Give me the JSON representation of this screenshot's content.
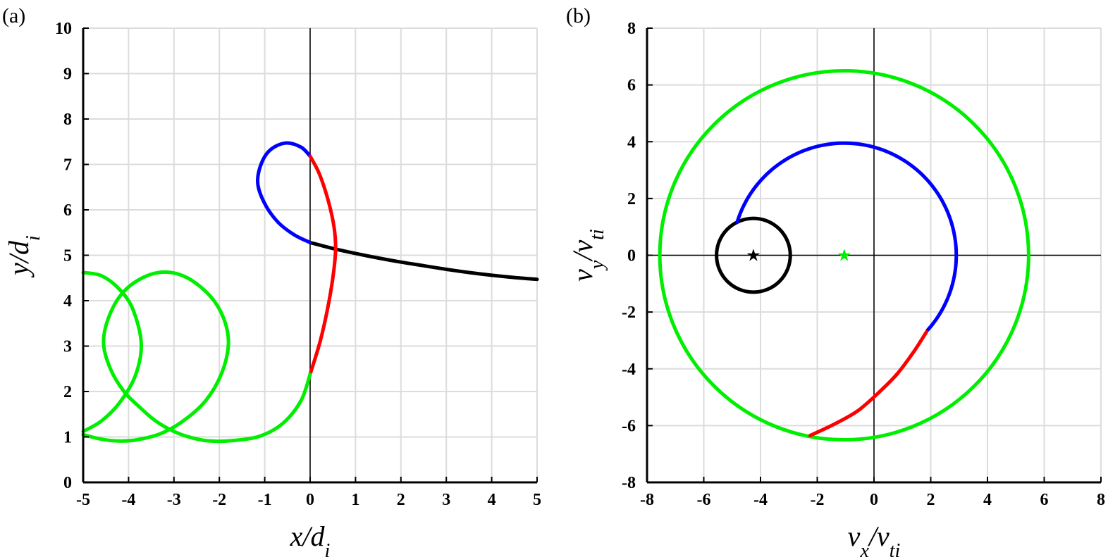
{
  "chart_data": [
    {
      "type": "line",
      "panel_label": "(a)",
      "xlabel": "x/d_i",
      "ylabel": "y/d_i",
      "xlim": [
        -5,
        5
      ],
      "ylim": [
        0,
        10
      ],
      "xticks": [
        "-5",
        "-4",
        "-3",
        "-2",
        "-1",
        "0",
        "1",
        "2",
        "3",
        "4",
        "5"
      ],
      "yticks": [
        "0",
        "1",
        "2",
        "3",
        "4",
        "5",
        "6",
        "7",
        "8",
        "9",
        "10"
      ],
      "grid": true,
      "zero_lines": true,
      "series": [
        {
          "color": "#000000",
          "points": [
            [
              0,
              5.28
            ],
            [
              0.5,
              5.15
            ],
            [
              1,
              5.04
            ],
            [
              1.5,
              4.94
            ],
            [
              2,
              4.85
            ],
            [
              2.5,
              4.77
            ],
            [
              3,
              4.69
            ],
            [
              3.5,
              4.62
            ],
            [
              4,
              4.56
            ],
            [
              4.5,
              4.51
            ],
            [
              5,
              4.47
            ]
          ]
        },
        {
          "color": "#0000ff",
          "points": [
            [
              0,
              5.28
            ],
            [
              -0.35,
              5.45
            ],
            [
              -0.7,
              5.72
            ],
            [
              -0.98,
              6.1
            ],
            [
              -1.15,
              6.55
            ],
            [
              -1.1,
              6.95
            ],
            [
              -0.9,
              7.3
            ],
            [
              -0.55,
              7.47
            ],
            [
              -0.2,
              7.38
            ],
            [
              0,
              7.18
            ]
          ]
        },
        {
          "color": "#ff0000",
          "points": [
            [
              0,
              7.18
            ],
            [
              0.2,
              6.8
            ],
            [
              0.4,
              6.2
            ],
            [
              0.53,
              5.6
            ],
            [
              0.56,
              5.1
            ],
            [
              0.5,
              4.5
            ],
            [
              0.38,
              3.8
            ],
            [
              0.22,
              3.1
            ],
            [
              0,
              2.38
            ]
          ]
        },
        {
          "color": "#00ee00",
          "points": [
            [
              0,
              2.38
            ],
            [
              -0.2,
              1.8
            ],
            [
              -0.6,
              1.3
            ],
            [
              -1.1,
              1.02
            ],
            [
              -1.7,
              0.92
            ],
            [
              -2.2,
              0.91
            ],
            [
              -2.6,
              0.98
            ],
            [
              -3.0,
              1.12
            ],
            [
              -3.4,
              1.35
            ],
            [
              -3.75,
              1.65
            ],
            [
              -4.1,
              2.0
            ],
            [
              -4.4,
              2.5
            ],
            [
              -4.55,
              3.05
            ],
            [
              -4.45,
              3.6
            ],
            [
              -4.15,
              4.15
            ],
            [
              -3.7,
              4.5
            ],
            [
              -3.2,
              4.63
            ],
            [
              -2.7,
              4.5
            ],
            [
              -2.2,
              4.1
            ],
            [
              -1.9,
              3.6
            ],
            [
              -1.8,
              3.05
            ],
            [
              -1.95,
              2.4
            ],
            [
              -2.3,
              1.8
            ],
            [
              -2.8,
              1.35
            ],
            [
              -3.3,
              1.07
            ],
            [
              -3.8,
              0.94
            ],
            [
              -4.2,
              0.91
            ],
            [
              -4.6,
              0.95
            ],
            [
              -5,
              1.05
            ]
          ]
        },
        {
          "color": "#00ee00",
          "points": [
            [
              -5,
              4.62
            ],
            [
              -4.6,
              4.55
            ],
            [
              -4.2,
              4.25
            ],
            [
              -3.9,
              3.8
            ],
            [
              -3.72,
              3.05
            ],
            [
              -3.85,
              2.35
            ],
            [
              -4.2,
              1.75
            ],
            [
              -4.6,
              1.35
            ],
            [
              -5,
              1.12
            ]
          ]
        }
      ]
    },
    {
      "type": "line",
      "panel_label": "(b)",
      "xlabel": "v_x/v_ti",
      "ylabel": "v_y/v_ti",
      "xlim": [
        -8,
        8
      ],
      "ylim": [
        -8,
        8
      ],
      "xticks": [
        "-8",
        "-6",
        "-4",
        "-2",
        "0",
        "2",
        "4",
        "6",
        "8"
      ],
      "yticks": [
        "-8",
        "-6",
        "-4",
        "-2",
        "0",
        "2",
        "4",
        "6",
        "8"
      ],
      "grid": true,
      "zero_lines": true,
      "circles": [
        {
          "color": "#00ee00",
          "center": [
            -1.05,
            0
          ],
          "radius": 6.5
        },
        {
          "color": "#000000",
          "center": [
            -4.25,
            0
          ],
          "radius": 1.3
        }
      ],
      "arcs": [
        {
          "color": "#0000ff",
          "center": [
            -1.05,
            0
          ],
          "radius": 3.95,
          "from_deg": 163,
          "to_deg": -42
        },
        {
          "color": "#ff0000",
          "points": [
            [
              1.85,
              -2.7
            ],
            [
              1.4,
              -3.4
            ],
            [
              0.8,
              -4.2
            ],
            [
              0.1,
              -4.9
            ],
            [
              -0.6,
              -5.5
            ],
            [
              -1.4,
              -5.95
            ],
            [
              -2.25,
              -6.35
            ]
          ]
        }
      ],
      "markers": [
        {
          "symbol": "★",
          "color": "#000000",
          "x": -4.25,
          "y": 0
        },
        {
          "symbol": "★",
          "color": "#00ee00",
          "x": -1.05,
          "y": 0
        }
      ]
    }
  ]
}
